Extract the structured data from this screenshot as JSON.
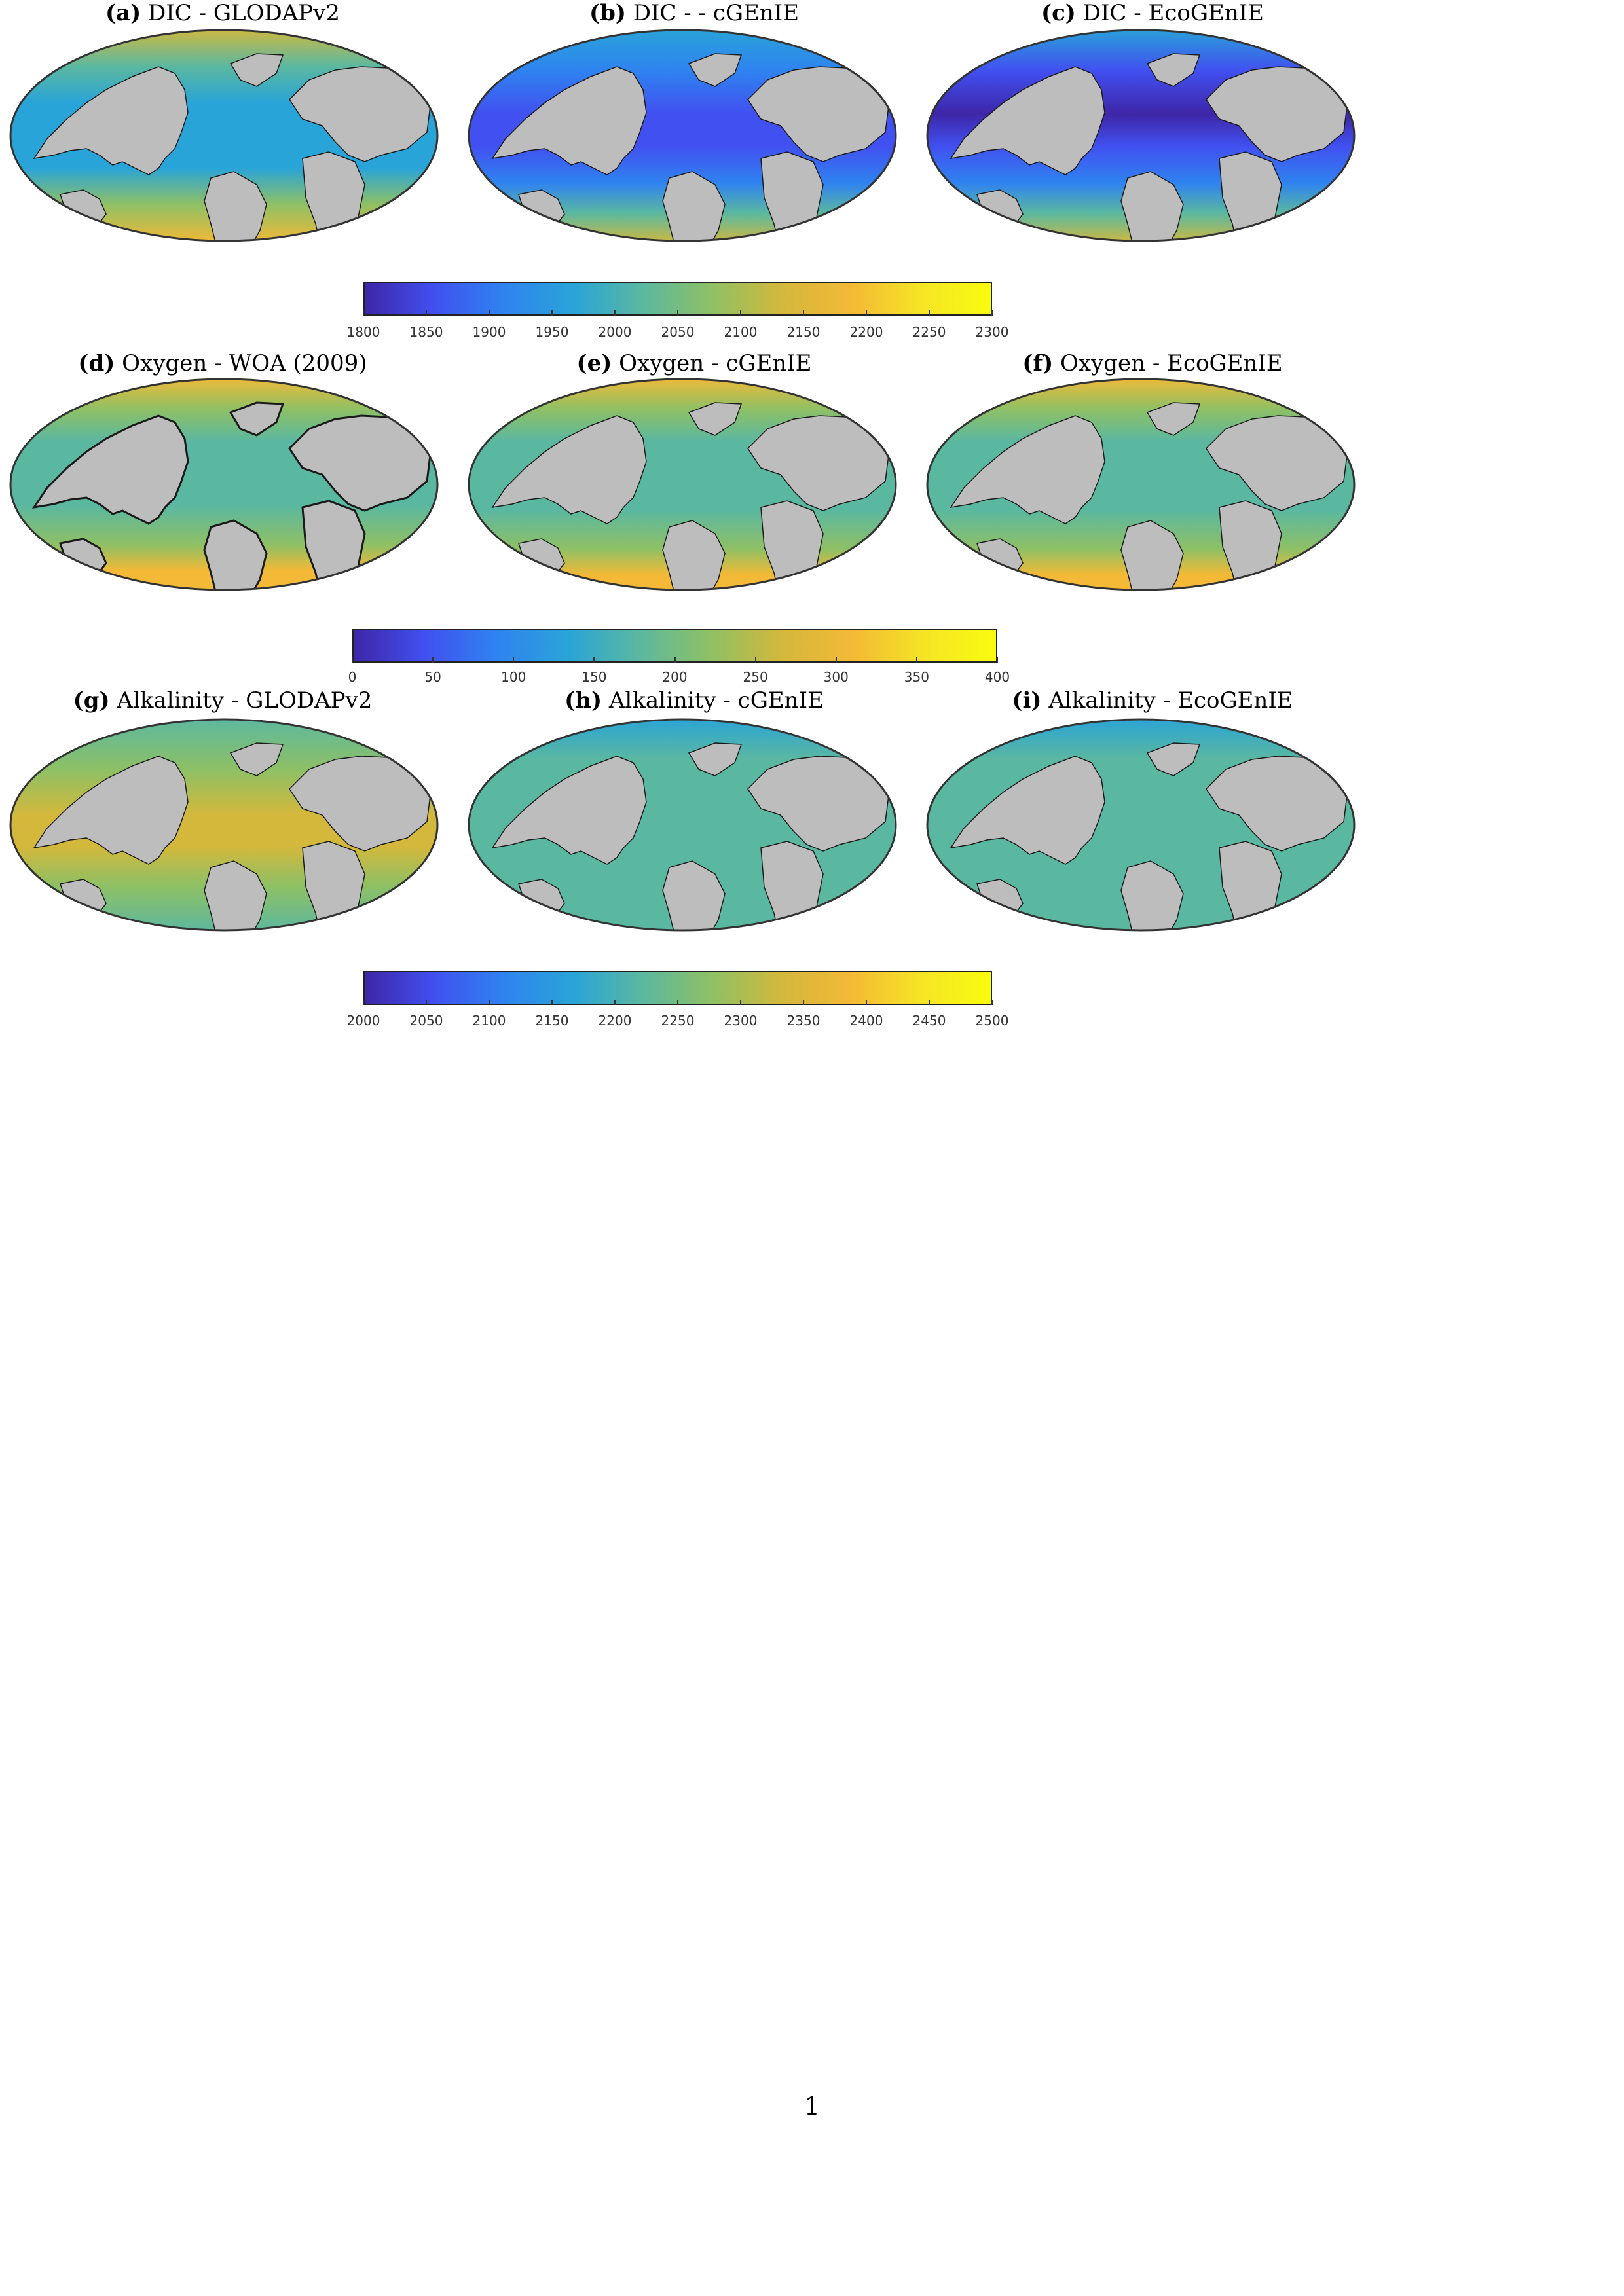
{
  "figure": {
    "rows": [
      {
        "panels": [
          {
            "tag": "(a)",
            "text": "DIC - GLODAPv2",
            "style": "dic_obs"
          },
          {
            "tag": "(b)",
            "text": "DIC - - cGEnIE",
            "style": "dic_model"
          },
          {
            "tag": "(c)",
            "text": "DIC - EcoGEnIE",
            "style": "dic_model2"
          }
        ],
        "colorbar": {
          "ticks": [
            "1800",
            "1850",
            "1900",
            "1950",
            "2000",
            "2050",
            "2100",
            "2150",
            "2200",
            "2250",
            "2300"
          ]
        }
      },
      {
        "panels": [
          {
            "tag": "(d)",
            "text": "Oxygen - WOA (2009)",
            "style": "oxy_obs"
          },
          {
            "tag": "(e)",
            "text": "Oxygen - cGEnIE",
            "style": "oxy_model"
          },
          {
            "tag": "(f)",
            "text": "Oxygen - EcoGEnIE",
            "style": "oxy_model"
          }
        ],
        "colorbar": {
          "ticks": [
            "0",
            "50",
            "100",
            "150",
            "200",
            "250",
            "300",
            "350",
            "400"
          ]
        }
      },
      {
        "panels": [
          {
            "tag": "(g)",
            "text": "Alkalinity - GLODAPv2",
            "style": "alk_obs"
          },
          {
            "tag": "(h)",
            "text": "Alkalinity - cGEnIE",
            "style": "alk_model"
          },
          {
            "tag": "(i)",
            "text": "Alkalinity - EcoGEnIE",
            "style": "alk_model"
          }
        ],
        "colorbar": {
          "ticks": [
            "2000",
            "2050",
            "2100",
            "2150",
            "2200",
            "2250",
            "2300",
            "2350",
            "2400",
            "2450",
            "2500"
          ]
        }
      }
    ],
    "colormap": [
      "#3e26a8",
      "#4150f0",
      "#2f83f0",
      "#29a4d8",
      "#5bb8a0",
      "#8fc064",
      "#d3b83c",
      "#f4b936",
      "#f5e525",
      "#f9fb0e"
    ],
    "land_color": "#bdbdbd"
  },
  "page_number": "1"
}
